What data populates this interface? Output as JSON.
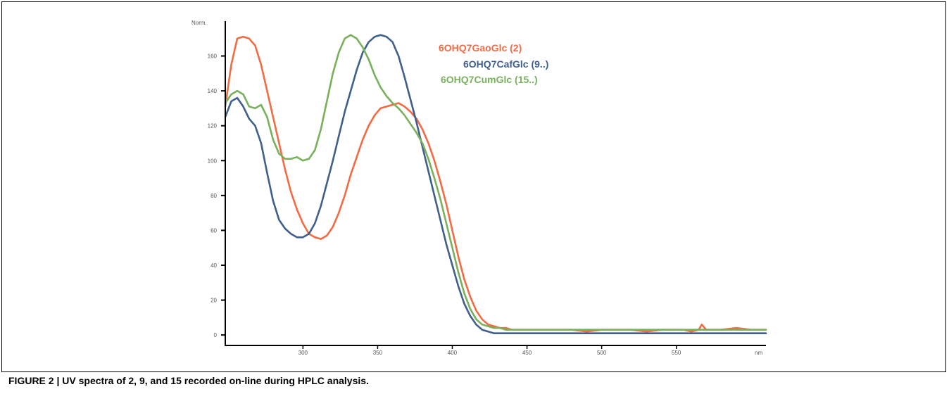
{
  "caption": "FIGURE 2 | UV spectra of 2, 9, and 15 recorded on-line during HPLC analysis.",
  "colors": {
    "orange": "#f36a43",
    "blue": "#3f5f8c",
    "green": "#78b05c"
  },
  "chart_data": {
    "type": "line",
    "title": "",
    "xlabel": "nm",
    "ylabel": "Norm.",
    "xlim": [
      248,
      610
    ],
    "ylim": [
      -6,
      180
    ],
    "x_ticks": [
      300,
      350,
      400,
      450,
      500,
      550
    ],
    "x_tick_labels": [
      "300",
      "350",
      "400",
      "450",
      "500",
      "550"
    ],
    "x_unit_label": "nm",
    "y_ticks": [
      0,
      20,
      40,
      60,
      80,
      100,
      120,
      140,
      160
    ],
    "y_tick_labels": [
      "0",
      "20",
      "40",
      "60",
      "80",
      "100",
      "120",
      "140",
      "160"
    ],
    "y_unit_label": "Norm.",
    "grid": false,
    "legend_position": "top-right",
    "series": [
      {
        "name": "6OHQ7GaoGlc (2)",
        "color": "#f36a43",
        "x": [
          248,
          252,
          256,
          260,
          264,
          268,
          272,
          276,
          280,
          284,
          288,
          292,
          296,
          300,
          304,
          308,
          312,
          316,
          320,
          324,
          328,
          332,
          336,
          340,
          344,
          348,
          352,
          356,
          360,
          364,
          368,
          372,
          376,
          380,
          384,
          388,
          392,
          396,
          400,
          404,
          408,
          412,
          416,
          420,
          424,
          428,
          432,
          436,
          440,
          450,
          460,
          470,
          480,
          490,
          500,
          510,
          520,
          530,
          540,
          550,
          555,
          560,
          565,
          567,
          570,
          580,
          590,
          600,
          610
        ],
        "y": [
          131,
          155,
          170,
          171,
          170,
          166,
          155,
          140,
          125,
          110,
          95,
          82,
          72,
          64,
          58,
          56,
          55,
          57,
          62,
          70,
          80,
          92,
          102,
          112,
          120,
          126,
          130,
          131,
          132,
          133,
          131,
          128,
          124,
          118,
          110,
          100,
          88,
          75,
          60,
          45,
          32,
          22,
          14,
          9,
          6,
          5,
          4,
          4,
          3,
          3,
          3,
          3,
          3,
          2,
          3,
          3,
          3,
          2,
          3,
          3,
          3,
          2,
          3,
          6,
          3,
          3,
          4,
          3,
          3
        ]
      },
      {
        "name": "6OHQ7CafGlc (9..)",
        "color": "#3f5f8c",
        "x": [
          248,
          252,
          256,
          260,
          264,
          268,
          272,
          276,
          280,
          284,
          288,
          292,
          296,
          300,
          304,
          308,
          312,
          316,
          320,
          324,
          328,
          332,
          336,
          340,
          344,
          348,
          352,
          356,
          360,
          364,
          368,
          372,
          376,
          380,
          384,
          388,
          392,
          396,
          400,
          404,
          408,
          412,
          416,
          420,
          424,
          428,
          432,
          436,
          440,
          450,
          460,
          480,
          500,
          520,
          540,
          560,
          580,
          600,
          610
        ],
        "y": [
          125,
          134,
          136,
          131,
          124,
          120,
          110,
          93,
          77,
          66,
          61,
          58,
          56,
          56,
          58,
          64,
          74,
          87,
          100,
          114,
          128,
          140,
          152,
          162,
          168,
          171,
          172,
          171,
          168,
          160,
          148,
          135,
          122,
          108,
          94,
          80,
          66,
          52,
          40,
          28,
          18,
          11,
          6,
          3,
          2,
          1,
          1,
          1,
          1,
          1,
          1,
          1,
          1,
          1,
          1,
          1,
          1,
          1,
          1
        ]
      },
      {
        "name": "6OHQ7CumGlc (15..)",
        "color": "#78b05c",
        "x": [
          248,
          252,
          256,
          260,
          264,
          268,
          272,
          276,
          280,
          284,
          288,
          292,
          296,
          300,
          304,
          308,
          312,
          316,
          320,
          324,
          328,
          332,
          336,
          340,
          344,
          348,
          352,
          356,
          360,
          364,
          368,
          372,
          376,
          380,
          384,
          388,
          392,
          396,
          400,
          404,
          408,
          412,
          416,
          420,
          424,
          428,
          432,
          436,
          440,
          450,
          460,
          470,
          480,
          490,
          500,
          510,
          520,
          530,
          540,
          550,
          560,
          570,
          580,
          590,
          600,
          610
        ],
        "y": [
          133,
          138,
          140,
          138,
          131,
          130,
          132,
          125,
          112,
          104,
          101,
          101,
          102,
          100,
          101,
          106,
          118,
          134,
          150,
          162,
          170,
          172,
          170,
          165,
          158,
          149,
          142,
          137,
          133,
          130,
          126,
          121,
          116,
          110,
          101,
          90,
          78,
          64,
          50,
          36,
          24,
          15,
          9,
          6,
          5,
          4,
          4,
          3,
          3,
          3,
          3,
          3,
          3,
          3,
          3,
          3,
          3,
          3,
          3,
          3,
          3,
          3,
          3,
          3,
          3,
          3
        ]
      }
    ]
  }
}
